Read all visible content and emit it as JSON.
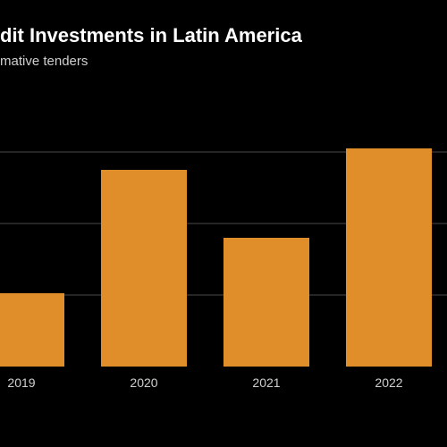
{
  "chart_data": {
    "type": "bar",
    "title": "dit Investments in Latin America",
    "subtitle": "mative tenders",
    "categories": [
      "2019",
      "2020",
      "2021",
      "2022"
    ],
    "series": [
      {
        "values": [
          2.05,
          5.5,
          3.6,
          6.1
        ]
      }
    ],
    "ylim": [
      0,
      7
    ],
    "grid": true,
    "legend": "none"
  },
  "colors": {
    "background": "#000000",
    "bar": "#e08e2a",
    "grid": "#4a4a4a",
    "title": "#ffffff",
    "subtitle": "#cfcfcf",
    "tick_label": "#d0d0d0"
  }
}
